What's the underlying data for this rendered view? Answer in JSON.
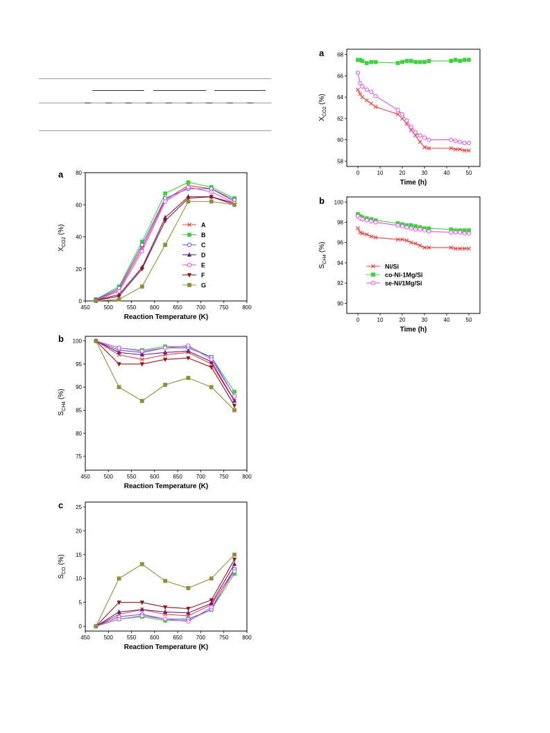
{
  "chart_data": [
    {
      "id": "left_a",
      "type": "line",
      "panel_label": "a",
      "ylabel_main": "X",
      "ylabel_sub": "CO2",
      "ylabel_tail": " (%)",
      "xlabel": "Reaction Temperature (K)",
      "xlim": [
        450,
        800
      ],
      "ylim": [
        0,
        80
      ],
      "xticks": [
        450,
        500,
        550,
        600,
        650,
        700,
        750,
        800
      ],
      "yticks": [
        0,
        20,
        40,
        60,
        80
      ],
      "x": [
        473,
        523,
        573,
        623,
        673,
        723,
        773
      ],
      "legend": "inside-right",
      "series": [
        {
          "name": "A",
          "color": "#e8403e",
          "marker": "x",
          "values": [
            0.5,
            7,
            33,
            63,
            72,
            70,
            62
          ]
        },
        {
          "name": "B",
          "color": "#3fd13f",
          "marker": "square",
          "values": [
            1,
            9,
            37,
            67,
            74,
            71,
            64
          ]
        },
        {
          "name": "C",
          "color": "#5656e8",
          "marker": "circle",
          "values": [
            0.8,
            8,
            35,
            64,
            70,
            70,
            63
          ]
        },
        {
          "name": "D",
          "color": "#6a1f7a",
          "marker": "triangle",
          "values": [
            0.5,
            4,
            21,
            52,
            65,
            65,
            61
          ]
        },
        {
          "name": "E",
          "color": "#e44fe4",
          "marker": "circle",
          "values": [
            0.5,
            6,
            31,
            62,
            71,
            68,
            61
          ]
        },
        {
          "name": "F",
          "color": "#8b1a1a",
          "marker": "triangle-down",
          "values": [
            0.3,
            3,
            20,
            50,
            64,
            65,
            60
          ]
        },
        {
          "name": "G",
          "color": "#8f8f3a",
          "marker": "square",
          "values": [
            0,
            1,
            9,
            35,
            62,
            62,
            60
          ]
        }
      ]
    },
    {
      "id": "left_b",
      "type": "line",
      "panel_label": "b",
      "ylabel_main": "S",
      "ylabel_sub": "CH4",
      "ylabel_tail": " (%)",
      "xlabel": "Reaction Temperature (K)",
      "xlim": [
        450,
        800
      ],
      "ylim": [
        72,
        101
      ],
      "xticks": [
        450,
        500,
        550,
        600,
        650,
        700,
        750,
        800
      ],
      "yticks": [
        75,
        80,
        85,
        90,
        95,
        100
      ],
      "x": [
        473,
        523,
        573,
        623,
        673,
        723,
        773
      ],
      "series": [
        {
          "name": "A",
          "color": "#e8403e",
          "marker": "x",
          "values": [
            100,
            97,
            96,
            97,
            97.5,
            95,
            87
          ]
        },
        {
          "name": "B",
          "color": "#3fd13f",
          "marker": "square",
          "values": [
            100,
            98.5,
            98,
            98.8,
            98.8,
            96.5,
            89
          ]
        },
        {
          "name": "C",
          "color": "#5656e8",
          "marker": "circle",
          "values": [
            100,
            98,
            97.5,
            98.5,
            98.5,
            96.5,
            88
          ]
        },
        {
          "name": "D",
          "color": "#6a1f7a",
          "marker": "triangle",
          "values": [
            100,
            97.5,
            97,
            97.5,
            97.8,
            95.5,
            87
          ]
        },
        {
          "name": "E",
          "color": "#e44fe4",
          "marker": "circle",
          "values": [
            100,
            98.5,
            97.8,
            98.5,
            99,
            96,
            88
          ]
        },
        {
          "name": "F",
          "color": "#8b1a1a",
          "marker": "triangle-down",
          "values": [
            100,
            95,
            95,
            96,
            96.3,
            94.3,
            86
          ]
        },
        {
          "name": "G",
          "color": "#8f8f3a",
          "marker": "square",
          "values": [
            100,
            90,
            87,
            90.5,
            92,
            90,
            85
          ]
        }
      ]
    },
    {
      "id": "left_c",
      "type": "line",
      "panel_label": "c",
      "ylabel_main": "S",
      "ylabel_sub": "CO",
      "ylabel_tail": " (%)",
      "xlabel": "Reaction Temperature (K)",
      "xlim": [
        450,
        800
      ],
      "ylim": [
        -1,
        26
      ],
      "xticks": [
        450,
        500,
        550,
        600,
        650,
        700,
        750,
        800
      ],
      "yticks": [
        0,
        5,
        10,
        15,
        20,
        25
      ],
      "x": [
        473,
        523,
        573,
        623,
        673,
        723,
        773
      ],
      "series": [
        {
          "name": "A",
          "color": "#e8403e",
          "marker": "x",
          "values": [
            0,
            2.5,
            3.5,
            2.5,
            2.2,
            4.5,
            12
          ]
        },
        {
          "name": "B",
          "color": "#3fd13f",
          "marker": "square",
          "values": [
            0,
            1.5,
            2,
            1.2,
            1.2,
            3.5,
            11
          ]
        },
        {
          "name": "C",
          "color": "#5656e8",
          "marker": "circle",
          "values": [
            0,
            2,
            2.5,
            1.5,
            1.5,
            3.5,
            12
          ]
        },
        {
          "name": "D",
          "color": "#6a1f7a",
          "marker": "triangle",
          "values": [
            0,
            3,
            3.5,
            3,
            2.8,
            4.8,
            13
          ]
        },
        {
          "name": "E",
          "color": "#e44fe4",
          "marker": "circle",
          "values": [
            0,
            1.5,
            2.2,
            1.5,
            1,
            4,
            11.5
          ]
        },
        {
          "name": "F",
          "color": "#8b1a1a",
          "marker": "triangle-down",
          "values": [
            0,
            5,
            5,
            4,
            3.7,
            5.5,
            14
          ]
        },
        {
          "name": "G",
          "color": "#8f8f3a",
          "marker": "square",
          "values": [
            0,
            10,
            13,
            9.5,
            8,
            10,
            15
          ]
        }
      ]
    },
    {
      "id": "right_a",
      "type": "line",
      "panel_label": "a",
      "ylabel_main": "X",
      "ylabel_sub": "CO2",
      "ylabel_tail": " (%)",
      "xlabel": "Time (h)",
      "xlim": [
        -5,
        55
      ],
      "ylim": [
        57.5,
        68.5
      ],
      "xticks": [
        0,
        10,
        20,
        30,
        40,
        50
      ],
      "yticks": [
        58,
        60,
        62,
        64,
        66,
        68
      ],
      "series": [
        {
          "name": "Ni/Si",
          "color": "#e8403e",
          "marker": "x",
          "x": [
            0,
            1,
            2,
            4,
            6,
            8,
            18,
            20,
            22,
            24,
            26,
            28,
            30,
            32,
            42,
            44,
            46,
            48,
            50
          ],
          "values": [
            64.7,
            64.3,
            64,
            63.7,
            63.4,
            63.1,
            62.4,
            62.0,
            61.5,
            60.9,
            60.4,
            59.8,
            59.3,
            59.2,
            59.2,
            59.1,
            59.1,
            59.0,
            59.0
          ]
        },
        {
          "name": "co-Ni-1Mg/Si",
          "color": "#3fd13f",
          "marker": "square",
          "x": [
            0,
            1,
            2,
            4,
            6,
            8,
            18,
            20,
            22,
            24,
            26,
            28,
            30,
            32,
            42,
            44,
            46,
            48,
            50
          ],
          "values": [
            67.5,
            67.5,
            67.4,
            67.2,
            67.3,
            67.3,
            67.2,
            67.3,
            67.4,
            67.4,
            67.3,
            67.3,
            67.3,
            67.4,
            67.4,
            67.5,
            67.4,
            67.5,
            67.5
          ]
        },
        {
          "name": "se-Ni/1Mg/Si",
          "color": "#e44fe4",
          "marker": "circle",
          "x": [
            0,
            1,
            2,
            4,
            6,
            8,
            18,
            20,
            22,
            24,
            26,
            28,
            30,
            32,
            42,
            44,
            46,
            48,
            50
          ],
          "values": [
            66.3,
            65.3,
            65.0,
            64.7,
            64.5,
            64.1,
            62.8,
            62.4,
            61.8,
            61.2,
            60.7,
            60.4,
            60.2,
            60.0,
            60.0,
            59.9,
            59.8,
            59.7,
            59.7
          ]
        }
      ]
    },
    {
      "id": "right_b",
      "type": "line",
      "panel_label": "b",
      "ylabel_main": "S",
      "ylabel_sub": "CH4",
      "ylabel_tail": " (%)",
      "xlabel": "Time (h)",
      "xlim": [
        -5,
        55
      ],
      "ylim": [
        89,
        100.5
      ],
      "xticks": [
        0,
        10,
        20,
        30,
        40,
        50
      ],
      "yticks": [
        90,
        92,
        94,
        96,
        98,
        100
      ],
      "legend": "lower-left",
      "series": [
        {
          "name": "Ni/Si",
          "color": "#e8403e",
          "marker": "x",
          "x": [
            0,
            1,
            2,
            4,
            6,
            8,
            18,
            20,
            22,
            24,
            26,
            28,
            30,
            32,
            42,
            44,
            46,
            48,
            50
          ],
          "values": [
            97.4,
            97.0,
            96.9,
            96.8,
            96.6,
            96.5,
            96.3,
            96.3,
            96.2,
            96.0,
            95.9,
            95.7,
            95.5,
            95.5,
            95.5,
            95.4,
            95.4,
            95.4,
            95.4
          ]
        },
        {
          "name": "co-Ni-1Mg/Si",
          "color": "#3fd13f",
          "marker": "square",
          "x": [
            0,
            1,
            2,
            4,
            6,
            8,
            18,
            20,
            22,
            24,
            26,
            28,
            30,
            32,
            42,
            44,
            46,
            48,
            50
          ],
          "values": [
            98.8,
            98.6,
            98.5,
            98.4,
            98.3,
            98.2,
            97.9,
            97.8,
            97.7,
            97.7,
            97.6,
            97.5,
            97.4,
            97.4,
            97.3,
            97.2,
            97.2,
            97.2,
            97.2
          ]
        },
        {
          "name": "se-Ni/1Mg/Si",
          "color": "#e44fe4",
          "marker": "circle",
          "x": [
            0,
            1,
            2,
            4,
            6,
            8,
            18,
            20,
            22,
            24,
            26,
            28,
            30,
            32,
            42,
            44,
            46,
            48,
            50
          ],
          "values": [
            98.6,
            98.4,
            98.3,
            98.2,
            98.1,
            98.0,
            97.7,
            97.6,
            97.5,
            97.4,
            97.3,
            97.3,
            97.2,
            97.1,
            97.0,
            97.0,
            97.0,
            96.9,
            96.9
          ]
        }
      ]
    }
  ]
}
